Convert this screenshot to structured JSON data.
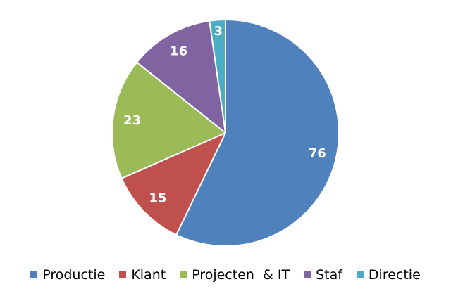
{
  "chart_data": {
    "type": "pie",
    "categories": [
      "Productie",
      "Klant",
      "Projecten  & IT",
      "Staf",
      "Directie"
    ],
    "values": [
      76,
      15,
      23,
      16,
      3
    ],
    "colors": [
      "#4F81BD",
      "#C0504D",
      "#9BBB59",
      "#8064A2",
      "#4BACC6"
    ],
    "slice_label_color": "#FFFFFF",
    "data_labels": [
      "76",
      "15",
      "23",
      "16",
      "3"
    ],
    "start_angle": "top (12 o'clock), clockwise",
    "legend_position": "bottom"
  }
}
